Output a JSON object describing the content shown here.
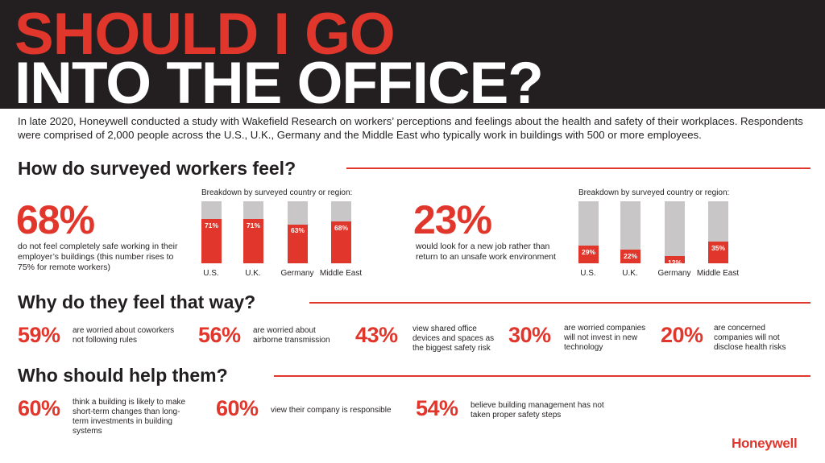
{
  "header": {
    "title_line1": "SHOULD I GO",
    "title_line2": "INTO THE OFFICE?"
  },
  "intro": "In late 2020, Honeywell conducted a study with Wakefield Research on workers’ perceptions and feelings about the health and safety of their workplaces. Respondents were comprised of 2,000 people across the U.S., U.K., Germany and the Middle East who typically work in buildings with 500 or more employees.",
  "section1": {
    "title": "How do surveyed workers feel?",
    "left": {
      "big": "68%",
      "text": "do not feel completely safe working in their employer’s buildings (this number rises to 75% for remote workers)",
      "breakdown_label": "Breakdown by surveyed country or region:"
    },
    "right": {
      "big": "23%",
      "text": "would look for a new job rather than return to an unsafe work environment",
      "breakdown_label": "Breakdown by surveyed country or region:"
    }
  },
  "chart_data": [
    {
      "type": "bar",
      "categories": [
        "U.S.",
        "U.K.",
        "Germany",
        "Middle East"
      ],
      "values": [
        71,
        71,
        63,
        68
      ],
      "labels": [
        "71%",
        "71%",
        "63%",
        "68%"
      ],
      "ylim": [
        0,
        100
      ]
    },
    {
      "type": "bar",
      "categories": [
        "U.S.",
        "U.K.",
        "Germany",
        "Middle East"
      ],
      "values": [
        29,
        22,
        12,
        35
      ],
      "labels": [
        "29%",
        "22%",
        "12%",
        "35%"
      ],
      "ylim": [
        0,
        100
      ]
    }
  ],
  "section2": {
    "title": "Why do they feel that way?",
    "stats": [
      {
        "pct": "59%",
        "text": "are worried about coworkers not following rules"
      },
      {
        "pct": "56%",
        "text": "are worried about airborne transmission"
      },
      {
        "pct": "43%",
        "text": "view shared office devices and spaces as the biggest safety risk"
      },
      {
        "pct": "30%",
        "text": "are worried companies will not invest in new technology"
      },
      {
        "pct": "20%",
        "text": "are concerned companies will not disclose health risks"
      }
    ]
  },
  "section3": {
    "title": "Who should help them?",
    "stats": [
      {
        "pct": "60%",
        "text": "think a building is likely to make short-term changes than long-term investments in building systems"
      },
      {
        "pct": "60%",
        "text": "view their company is responsible"
      },
      {
        "pct": "54%",
        "text": "believe building management has not taken proper safety steps"
      }
    ]
  },
  "logo": "Honeywell",
  "colors": {
    "accent": "#e0362b",
    "dark": "#231f20",
    "bar_bg": "#c8c6c6"
  }
}
